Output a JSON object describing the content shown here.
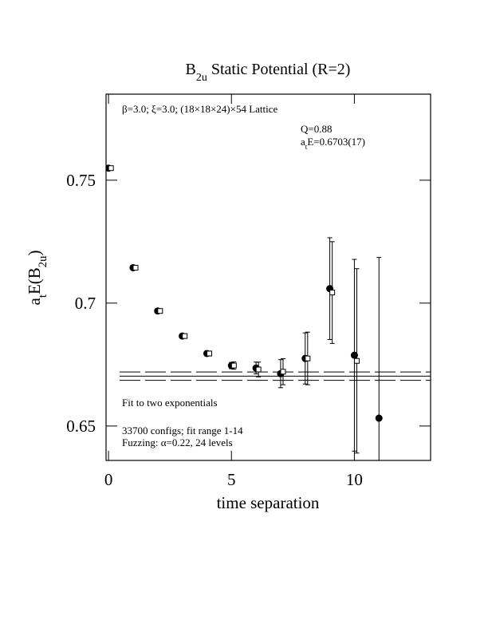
{
  "chart_data": {
    "type": "scatter",
    "title": [
      "B",
      "2u",
      " Static Potential (R=2)"
    ],
    "x_label": "time separation",
    "y_label": [
      "a",
      "t",
      "E(B",
      "2u",
      ")"
    ],
    "xlim": [
      -0.1,
      13.1
    ],
    "ylim": [
      0.636,
      0.785
    ],
    "xticks": [
      0,
      5,
      10
    ],
    "yticks": [
      0.65,
      0.7,
      0.75
    ],
    "annotations": [
      {
        "text": [
          "β=3.0; ξ=3.0; (18×18×24)×54 Lattice"
        ]
      },
      {
        "text": [
          "Q=0.88"
        ]
      },
      {
        "text": [
          "a",
          "t",
          "E=0.6703(17)"
        ]
      },
      {
        "text": [
          "Fit to two exponentials"
        ]
      },
      {
        "text": [
          "33700 configs; fit range 1-14"
        ]
      },
      {
        "text": [
          "Fuzzing: α=0.22, 24 levels"
        ]
      }
    ],
    "fit": {
      "value": 0.6703,
      "error": 0.0017,
      "x": [
        0.45,
        13.1
      ]
    },
    "series": [
      {
        "marker": "circle",
        "color": "#000000",
        "x": [
          0,
          1,
          2,
          3,
          4,
          5,
          6,
          7,
          8,
          9,
          10,
          11
        ],
        "values": [
          0.7549,
          0.7144,
          0.6968,
          0.6866,
          0.6795,
          0.6746,
          0.6736,
          0.6713,
          0.6775,
          0.7059,
          0.6788,
          0.6532
        ],
        "errors": [
          0.0004,
          0.0005,
          0.0006,
          0.0008,
          0.001,
          0.0013,
          0.0024,
          0.0057,
          0.0104,
          0.0207,
          0.039,
          0.0654
        ]
      },
      {
        "marker": "square",
        "color": "#000000",
        "x": [
          0.1,
          1.1,
          2.1,
          3.1,
          4.1,
          5.1,
          6.1,
          7.1,
          8.1,
          9.1,
          10.1
        ],
        "values": [
          0.7549,
          0.7144,
          0.6968,
          0.6866,
          0.6795,
          0.6746,
          0.673,
          0.6721,
          0.6775,
          0.7043,
          0.6765
        ],
        "errors": [
          0.0004,
          0.0005,
          0.0006,
          0.0008,
          0.001,
          0.0015,
          0.003,
          0.0053,
          0.0107,
          0.0207,
          0.0375
        ]
      }
    ]
  }
}
